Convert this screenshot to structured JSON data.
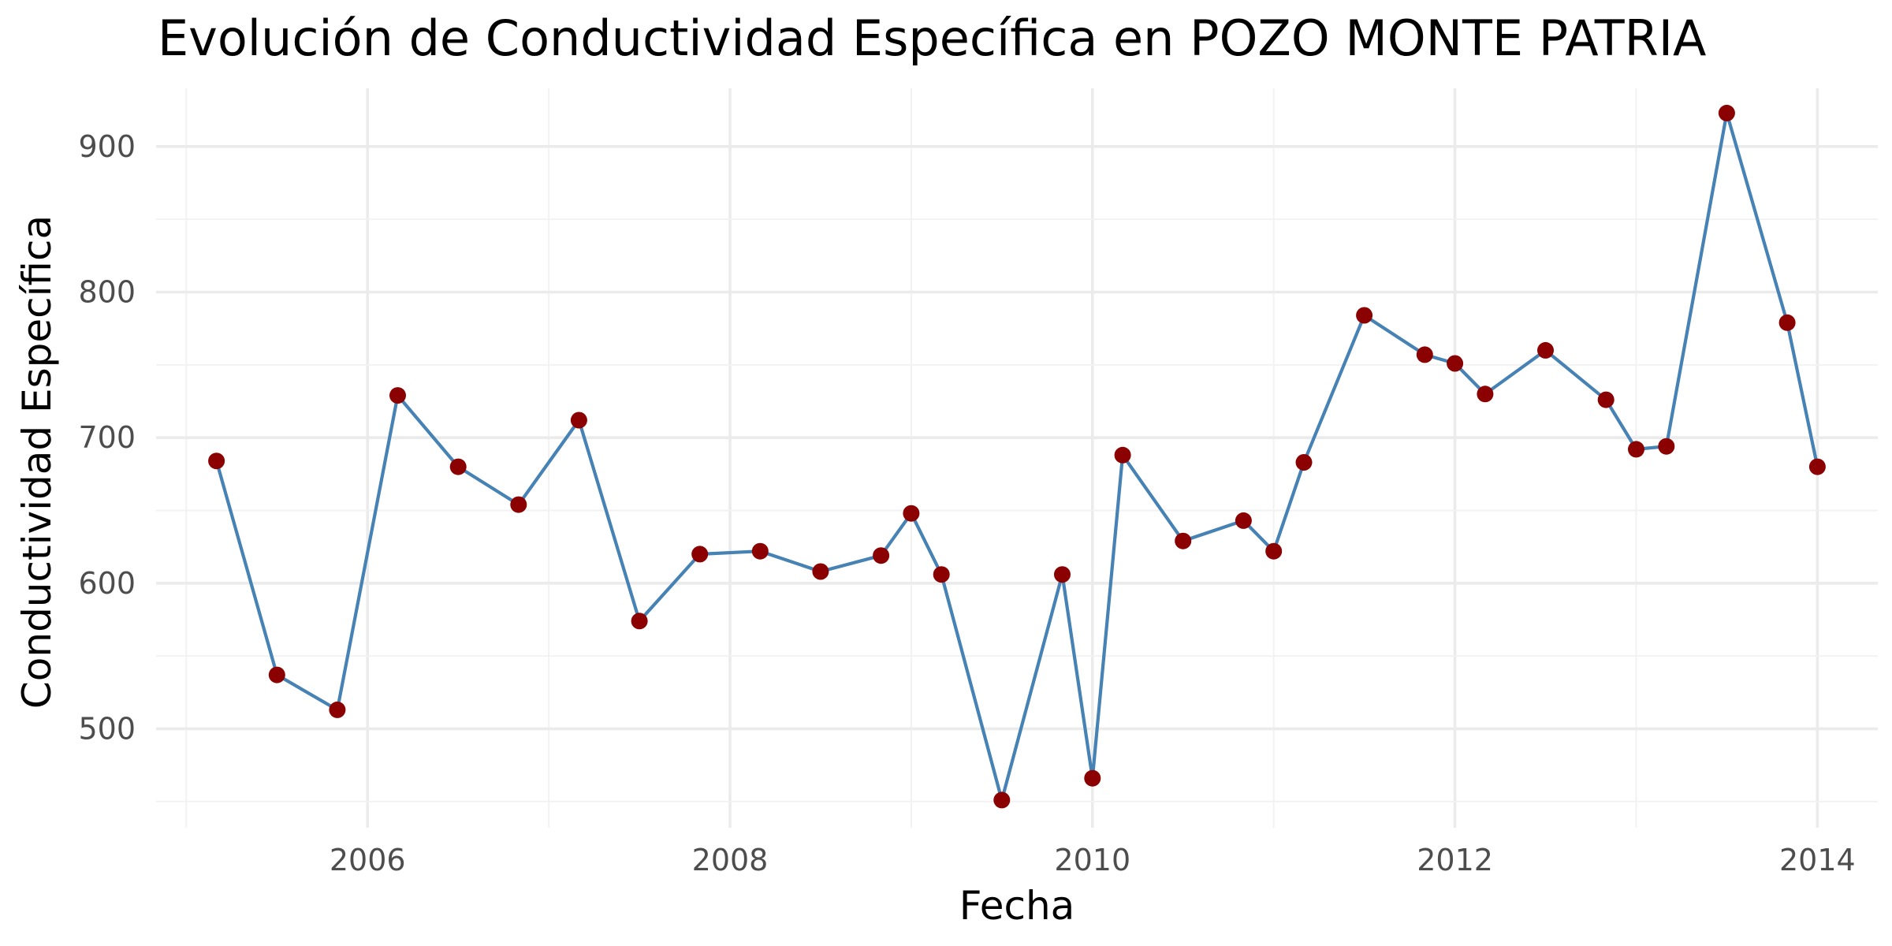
{
  "chart_data": {
    "type": "line",
    "title": "Evolución de Conductividad Específica en POZO MONTE PATRIA",
    "xlabel": "Fecha",
    "ylabel": "Conductividad Específica",
    "x_ticks": [
      "2006",
      "2008",
      "2010",
      "2012",
      "2014"
    ],
    "y_ticks": [
      500,
      600,
      700,
      800,
      900
    ],
    "xlim": [
      "2004-11",
      "2014-05"
    ],
    "ylim": [
      432,
      940
    ],
    "grid": true,
    "legend": "none",
    "line_color": "#4682b4",
    "point_color": "#8b0000",
    "series": [
      {
        "x": [
          "2005-03",
          "2005-07",
          "2005-11",
          "2006-03",
          "2006-07",
          "2006-11",
          "2007-03",
          "2007-07",
          "2007-11",
          "2008-03",
          "2008-07",
          "2008-11",
          "2009-01",
          "2009-03",
          "2009-07",
          "2009-11",
          "2010-01",
          "2010-03",
          "2010-07",
          "2010-11",
          "2011-01",
          "2011-03",
          "2011-07",
          "2011-11",
          "2012-01",
          "2012-03",
          "2012-07",
          "2012-11",
          "2013-01",
          "2013-03",
          "2013-07",
          "2013-11",
          "2014-01"
        ],
        "values": [
          684,
          537,
          513,
          729,
          680,
          654,
          712,
          574,
          620,
          622,
          608,
          619,
          648,
          606,
          451,
          606,
          466,
          688,
          629,
          643,
          622,
          683,
          784,
          757,
          751,
          730,
          760,
          726,
          692,
          694,
          923,
          779,
          680
        ]
      }
    ]
  }
}
